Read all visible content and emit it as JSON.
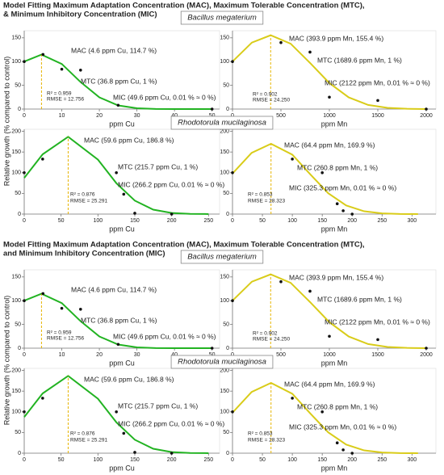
{
  "panels": [
    {
      "title": [
        "Model Fitting Maximum Adaptation Concentration (MAC), Maximum Tolerable Concentration (MTC),",
        "& Minimum Inhibitory Concentration (MIC)"
      ],
      "organisms": [
        "Bacillus megaterium",
        "Rhodotorula mucilaginosa"
      ],
      "ylabel": "Relative growth (% compared to control)"
    },
    {
      "title": [
        "Model Fitting Maximum Adaptation Concentration (MAC), Maximum Tolerable Concentration (MTC),",
        "and Minimum Inhibitory Concentration (MIC)"
      ],
      "organisms": [
        "Bacillus megaterium",
        "Rhodotorula mucilaginosa"
      ],
      "ylabel": "Relative growth (% compared to control)"
    }
  ],
  "chart_data": [
    {
      "type": "scatter",
      "xlabel": "ppm Cu",
      "x": [
        0,
        5,
        10,
        15,
        25,
        50
      ],
      "values": [
        100,
        115,
        84,
        82,
        8,
        0
      ],
      "color": "#111111",
      "fit": {
        "x": [
          0,
          4.6,
          10,
          15,
          20,
          25,
          30,
          35,
          40,
          45,
          50
        ],
        "values": [
          100,
          114.7,
          94.9,
          56.9,
          24.6,
          7.6,
          1.7,
          0.3,
          0.1,
          0,
          0
        ],
        "color": "#22b322"
      },
      "mac_line": 4.6,
      "line_color": "#e6b400",
      "xlim": [
        0,
        52
      ],
      "ylim": [
        0,
        165
      ],
      "xticks": [
        0,
        10,
        20,
        30,
        40,
        50
      ],
      "yticks": [
        0,
        50,
        100,
        150
      ],
      "annotations": [
        "MAC (4.6 ppm Cu, 114.7 %)",
        "MTC (36.8 ppm Cu, 1 %)",
        "MIC (49.6 ppm Cu, 0.01 % ≈ 0 %)"
      ],
      "stats": [
        "R² = 0.959",
        "RMSE = 12.756"
      ]
    },
    {
      "type": "scatter",
      "xlabel": "ppm Mn",
      "x": [
        0,
        500,
        800,
        1000,
        1500,
        2000
      ],
      "values": [
        100,
        140,
        120,
        25,
        18,
        0
      ],
      "color": "#111111",
      "fit": {
        "x": [
          0,
          200,
          393.9,
          600,
          800,
          1000,
          1200,
          1400,
          1600,
          1800,
          2000
        ],
        "values": [
          100,
          140,
          155.4,
          137.7,
          97.2,
          54.7,
          24.5,
          8.7,
          2.5,
          0.6,
          0.1
        ],
        "color": "#d9cc1a"
      },
      "mac_line": 393.9,
      "line_color": "#e6b400",
      "xlim": [
        0,
        2100
      ],
      "ylim": [
        0,
        165
      ],
      "xticks": [
        0,
        500,
        1000,
        1500,
        2000
      ],
      "yticks": [
        0,
        50,
        100,
        150
      ],
      "annotations": [
        "MAC (393.9 ppm Mn, 155.4 %)",
        "MTC (1689.6 ppm Mn, 1 %)",
        "MIC (2122 ppm Mn, 0.01 % ≈ 0 %)"
      ],
      "stats": [
        "R² = 0.902",
        "RMSE = 24.250"
      ]
    },
    {
      "type": "scatter",
      "xlabel": "ppm Cu",
      "x": [
        0,
        25,
        125,
        135,
        150,
        200
      ],
      "values": [
        100,
        133,
        100,
        48,
        2,
        0
      ],
      "color": "#111111",
      "fit": {
        "x": [
          0,
          25,
          59.6,
          100,
          125,
          150,
          175,
          200,
          225,
          250
        ],
        "values": [
          87.4,
          144.5,
          186.8,
          131.6,
          74.6,
          32.5,
          10.7,
          2.7,
          0.5,
          0.1
        ],
        "color": "#22b322"
      },
      "mac_line": 59.6,
      "line_color": "#e6b400",
      "xlim": [
        0,
        265
      ],
      "ylim": [
        0,
        205
      ],
      "xticks": [
        0,
        50,
        100,
        150,
        200,
        250
      ],
      "yticks": [
        0,
        50,
        100,
        150,
        200
      ],
      "annotations": [
        "MAC (59.6 ppm Cu, 186.8 %)",
        "MTC (215.7 ppm Cu, 1 %)",
        "MIC (266.2 ppm Cu, 0.01 % ≈ 0 %)"
      ],
      "stats": [
        "R² = 0.876",
        "RMSE = 25.291"
      ]
    },
    {
      "type": "scatter",
      "xlabel": "ppm Mn",
      "x": [
        0,
        100,
        150,
        175,
        185,
        200
      ],
      "values": [
        100,
        133,
        100,
        25,
        8,
        0
      ],
      "color": "#111111",
      "fit": {
        "x": [
          0,
          32,
          64.4,
          100,
          130,
          160,
          190,
          220,
          250,
          280,
          310
        ],
        "values": [
          98,
          148,
          169.9,
          143.6,
          96.1,
          50.3,
          20.8,
          6.8,
          1.7,
          0.3,
          0
        ],
        "color": "#d9cc1a"
      },
      "mac_line": 64.4,
      "line_color": "#e6b400",
      "xlim": [
        0,
        340
      ],
      "ylim": [
        0,
        205
      ],
      "xticks": [
        0,
        50,
        100,
        150,
        200,
        250,
        300
      ],
      "yticks": [
        0,
        50,
        100,
        150,
        200
      ],
      "annotations": [
        "MAC (64.4 ppm Mn, 169.9 %)",
        "MTC (260.8 ppm Mn, 1 %)",
        "MIC (325.3 ppm Mn, 0.01 % ≈ 0 %)"
      ],
      "stats": [
        "R² = 0.853",
        "RMSE = 28.323"
      ]
    },
    {
      "type": "scatter",
      "xlabel": "ppm Cu",
      "x": [
        0,
        5,
        10,
        15,
        25,
        50
      ],
      "values": [
        100,
        115,
        84,
        82,
        8,
        0
      ],
      "color": "#111111",
      "fit": {
        "x": [
          0,
          4.6,
          10,
          15,
          20,
          25,
          30,
          35,
          40,
          45,
          50
        ],
        "values": [
          100,
          114.7,
          94.9,
          56.9,
          24.6,
          7.6,
          1.7,
          0.3,
          0.1,
          0,
          0
        ],
        "color": "#22b322"
      },
      "mac_line": 4.6,
      "line_color": "#e6b400",
      "xlim": [
        0,
        52
      ],
      "ylim": [
        0,
        165
      ],
      "xticks": [
        0,
        10,
        20,
        30,
        40,
        50
      ],
      "yticks": [
        0,
        50,
        100,
        150
      ],
      "annotations": [
        "MAC (4.6 ppm Cu, 114.7 %)",
        "MTC (36.8 ppm Cu, 1 %)",
        "MIC (49.6 ppm Cu, 0.01 % ≈ 0 %)"
      ],
      "stats": [
        "R² = 0.959",
        "RMSE = 12.756"
      ]
    },
    {
      "type": "scatter",
      "xlabel": "ppm Mn",
      "x": [
        0,
        500,
        800,
        1000,
        1500,
        2000
      ],
      "values": [
        100,
        140,
        120,
        25,
        18,
        0
      ],
      "color": "#111111",
      "fit": {
        "x": [
          0,
          200,
          393.9,
          600,
          800,
          1000,
          1200,
          1400,
          1600,
          1800,
          2000
        ],
        "values": [
          100,
          140,
          155.4,
          137.7,
          97.2,
          54.7,
          24.5,
          8.7,
          2.5,
          0.6,
          0.1
        ],
        "color": "#d9cc1a"
      },
      "mac_line": 393.9,
      "line_color": "#e6b400",
      "xlim": [
        0,
        2100
      ],
      "ylim": [
        0,
        165
      ],
      "xticks": [
        0,
        500,
        1000,
        1500,
        2000
      ],
      "yticks": [
        0,
        50,
        100,
        150
      ],
      "annotations": [
        "MAC (393.9 ppm Mn, 155.4 %)",
        "MTC (1689.6 ppm Mn, 1 %)",
        "MIC (2122 ppm Mn, 0.01 % ≈ 0 %)"
      ],
      "stats": [
        "R² = 0.902",
        "RMSE = 24.250"
      ]
    },
    {
      "type": "scatter",
      "xlabel": "ppm Cu",
      "x": [
        0,
        25,
        125,
        135,
        150,
        200
      ],
      "values": [
        100,
        133,
        100,
        48,
        2,
        0
      ],
      "color": "#111111",
      "fit": {
        "x": [
          0,
          25,
          59.6,
          100,
          125,
          150,
          175,
          200,
          225,
          250
        ],
        "values": [
          87.4,
          144.5,
          186.8,
          131.6,
          74.6,
          32.5,
          10.7,
          2.7,
          0.5,
          0.1
        ],
        "color": "#22b322"
      },
      "mac_line": 59.6,
      "line_color": "#e6b400",
      "xlim": [
        0,
        265
      ],
      "ylim": [
        0,
        205
      ],
      "xticks": [
        0,
        50,
        100,
        150,
        200,
        250
      ],
      "yticks": [
        0,
        50,
        100,
        150,
        200
      ],
      "annotations": [
        "MAC (59.6 ppm Cu, 186.8 %)",
        "MTC (215.7 ppm Cu, 1 %)",
        "MIC (266.2 ppm Cu, 0.01 % ≈ 0 %)"
      ],
      "stats": [
        "R² = 0.876",
        "RMSE = 25.291"
      ]
    },
    {
      "type": "scatter",
      "xlabel": "ppm Mn",
      "x": [
        0,
        100,
        150,
        175,
        185,
        200
      ],
      "values": [
        100,
        133,
        100,
        25,
        8,
        0
      ],
      "color": "#111111",
      "fit": {
        "x": [
          0,
          32,
          64.4,
          100,
          130,
          160,
          190,
          220,
          250,
          280,
          310
        ],
        "values": [
          98,
          148,
          169.9,
          143.6,
          96.1,
          50.3,
          20.8,
          6.8,
          1.7,
          0.3,
          0
        ],
        "color": "#d9cc1a"
      },
      "mac_line": 64.4,
      "line_color": "#e6b400",
      "xlim": [
        0,
        340
      ],
      "ylim": [
        0,
        205
      ],
      "xticks": [
        0,
        50,
        100,
        150,
        200,
        250,
        300
      ],
      "yticks": [
        0,
        50,
        100,
        150,
        200
      ],
      "annotations": [
        "MAC (64.4 ppm Mn, 169.9 %)",
        "MTC (260.8 ppm Mn, 1 %)",
        "MIC (325.3 ppm Mn, 0.01 % ≈ 0 %)"
      ],
      "stats": [
        "R² = 0.853",
        "RMSE = 28.323"
      ]
    }
  ]
}
